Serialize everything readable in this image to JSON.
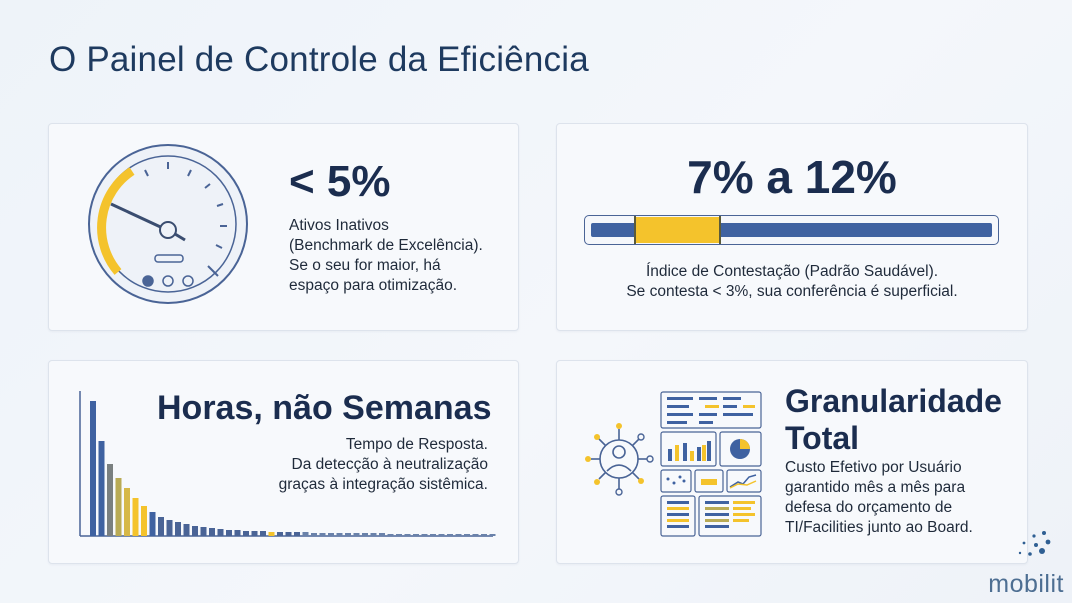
{
  "page": {
    "title": "O Painel de Controle da Eficiência"
  },
  "cards": {
    "inactive_assets": {
      "value": "< 5%",
      "lines": [
        "Ativos Inativos",
        "(Benchmark de Excelência).",
        "Se o seu for maior, há",
        "espaço para otimização."
      ],
      "icon": "speedometer-gauge-icon"
    },
    "dispute_rate": {
      "value": "7% a 12%",
      "lines": [
        "Índice de Contestação (Padrão Saudável).",
        "Se contesta < 3%, sua conferência é superficial."
      ],
      "range_low": 7,
      "range_high": 12
    },
    "response_time": {
      "value": "Horas, não Semanas",
      "lines": [
        "Tempo de Resposta.",
        "Da detecção à neutralização",
        "graças à integração sistêmica."
      ],
      "icon": "decay-bar-chart-icon"
    },
    "granularity": {
      "value_lines": [
        "Granularidade",
        "Total"
      ],
      "lines": [
        "Custo Efetivo por Usuário",
        "garantido mês a mês para",
        "defesa do orçamento de",
        "TI/Facilities junto ao Board."
      ],
      "icon": "user-dashboard-icon"
    }
  },
  "logo": {
    "text": "mobilit"
  },
  "colors": {
    "navy": "#1b2d4f",
    "blue": "#3f62a1",
    "gold": "#f4c32c",
    "olive": "#b9ab55"
  }
}
